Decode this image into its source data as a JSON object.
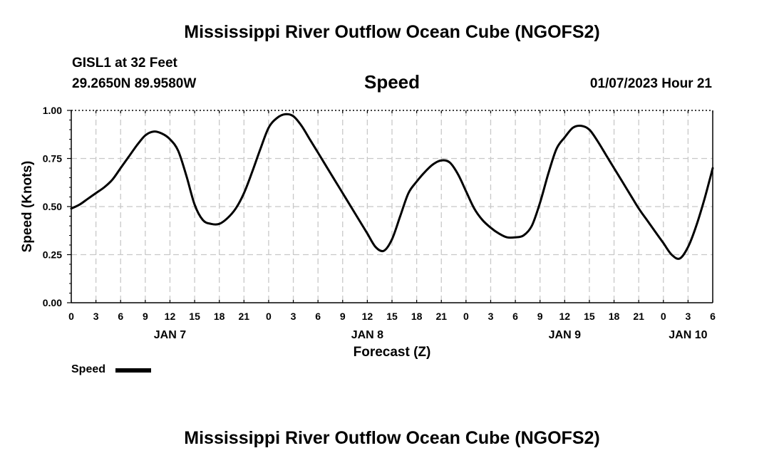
{
  "header": {
    "title": "Mississippi River Outflow Ocean Cube (NGOFS2)",
    "station": "GISL1 at 32 Feet",
    "coords": "29.2650N  89.9580W",
    "variable": "Speed",
    "date": "01/07/2023 Hour 21"
  },
  "footer": {
    "title": "Mississippi River Outflow Ocean Cube (NGOFS2)"
  },
  "chart_data": {
    "type": "line",
    "xlabel": "Forecast (Z)",
    "ylabel": "Speed (Knots)",
    "ylim": [
      0,
      1
    ],
    "xlim": [
      0,
      78
    ],
    "grid": true,
    "yticks": [
      "0.00",
      "0.25",
      "0.50",
      "0.75",
      "1.00"
    ],
    "xticks": [
      "0",
      "3",
      "6",
      "9",
      "12",
      "15",
      "18",
      "21",
      "0",
      "3",
      "6",
      "9",
      "12",
      "15",
      "18",
      "21",
      "0",
      "3",
      "6",
      "9",
      "12",
      "15",
      "18",
      "21",
      "0",
      "3",
      "6"
    ],
    "day_labels": [
      {
        "label": "JAN 7",
        "hour": 12
      },
      {
        "label": "JAN 8",
        "hour": 36
      },
      {
        "label": "JAN 9",
        "hour": 60
      },
      {
        "label": "JAN 10",
        "hour": 75
      }
    ],
    "legend": {
      "label": "Speed",
      "placement": "bottom-left"
    },
    "series": [
      {
        "name": "Speed",
        "x": [
          0,
          1,
          2,
          3,
          4,
          5,
          6,
          7,
          8,
          9,
          10,
          11,
          12,
          13,
          14,
          15,
          16,
          17,
          18,
          19,
          20,
          21,
          22,
          23,
          24,
          25,
          26,
          27,
          28,
          29,
          30,
          31,
          32,
          33,
          34,
          35,
          36,
          37,
          38,
          39,
          40,
          41,
          42,
          43,
          44,
          45,
          46,
          47,
          48,
          49,
          50,
          51,
          52,
          53,
          54,
          55,
          56,
          57,
          58,
          59,
          60,
          61,
          62,
          63,
          64,
          65,
          66,
          67,
          68,
          69,
          70,
          71,
          72,
          73,
          74,
          75,
          76,
          77,
          78
        ],
        "values": [
          0.49,
          0.51,
          0.54,
          0.57,
          0.6,
          0.64,
          0.7,
          0.76,
          0.82,
          0.87,
          0.89,
          0.88,
          0.85,
          0.79,
          0.66,
          0.51,
          0.43,
          0.41,
          0.41,
          0.44,
          0.49,
          0.57,
          0.68,
          0.8,
          0.91,
          0.96,
          0.98,
          0.97,
          0.92,
          0.85,
          0.78,
          0.71,
          0.64,
          0.57,
          0.5,
          0.43,
          0.36,
          0.29,
          0.27,
          0.33,
          0.45,
          0.57,
          0.63,
          0.68,
          0.72,
          0.74,
          0.73,
          0.67,
          0.58,
          0.49,
          0.43,
          0.39,
          0.36,
          0.34,
          0.34,
          0.35,
          0.4,
          0.52,
          0.67,
          0.8,
          0.86,
          0.91,
          0.92,
          0.9,
          0.84,
          0.77,
          0.7,
          0.63,
          0.56,
          0.49,
          0.43,
          0.37,
          0.31,
          0.25,
          0.23,
          0.29,
          0.4,
          0.54,
          0.7
        ]
      }
    ]
  }
}
